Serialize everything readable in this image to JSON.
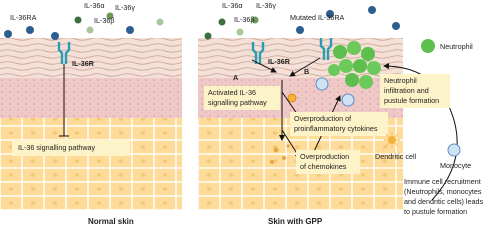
{
  "left_panel": {
    "caption": "Normal skin",
    "ligands": {
      "il36ra": "IL-36RA",
      "il36a": "IL-36α",
      "il36g": "IL-36γ",
      "il36b": "IL-36β"
    },
    "receptor": "IL-36R",
    "pathway": "IL-36 signalling pathway"
  },
  "right_panel": {
    "caption": "Skin with GPP",
    "ligands": {
      "il36a": "IL-36α",
      "il36g": "IL-36γ",
      "il36b": "IL-36β",
      "mutated": "Mutated IL-36RA"
    },
    "receptor": "IL-36R",
    "route_a": "A",
    "route_b": "B",
    "activated": [
      "Activated IL-36",
      "signalling pathway"
    ],
    "cytokines": [
      "Overproduction of",
      "proinflammatory cytokines"
    ],
    "chemokines": [
      "Overproduction",
      "of chemokines"
    ],
    "neutrophil_infiltration": [
      "Neutrophil",
      "infiltration and",
      "pustule formation"
    ]
  },
  "legend": {
    "neutrophil": "Neutrophil",
    "dendritic_cell": "Dendritic cell",
    "monocyte": "Monocyte"
  },
  "recruitment_note": [
    "Immune cell recruitment",
    "(Neutrophils, monocytes",
    "and dendritic cells) leads",
    "to pustule formation"
  ]
}
